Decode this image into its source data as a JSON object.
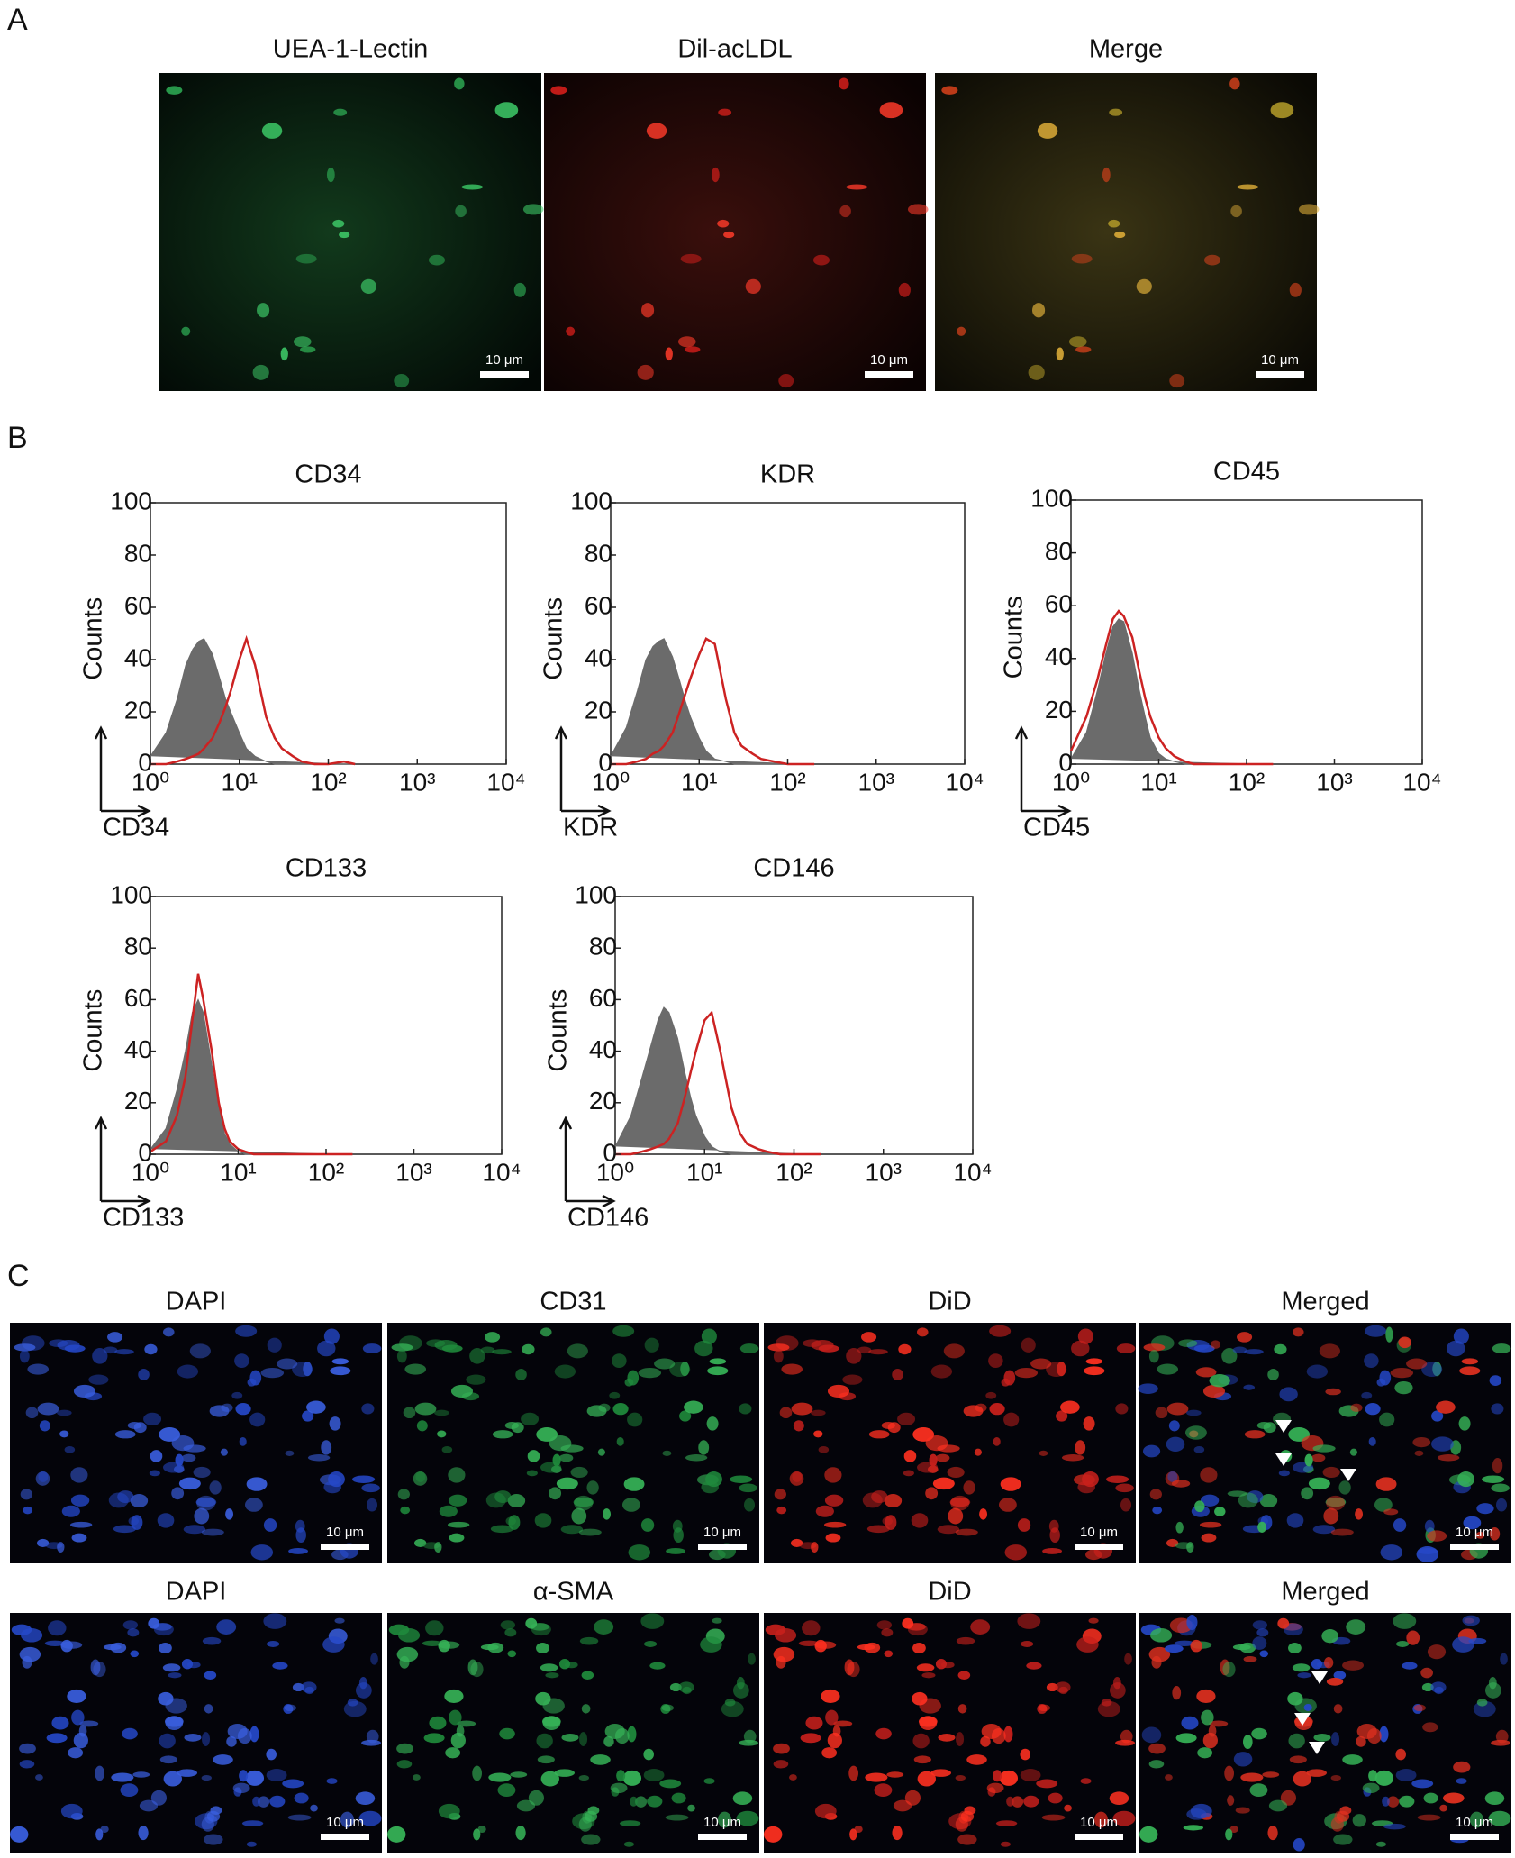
{
  "panel_labels": [
    "A",
    "B",
    "C"
  ],
  "panel_a": {
    "titles": [
      "UEA-1-Lectin",
      "Dil-acLDL",
      "Merge"
    ],
    "scale_bar": "10 μm"
  },
  "panel_c": {
    "rows": [
      [
        "DAPI",
        "CD31",
        "DiD",
        "Merged"
      ],
      [
        "DAPI",
        "α-SMA",
        "DiD",
        "Merged"
      ]
    ],
    "scale_bar": "10 μm"
  },
  "chart_data": [
    {
      "type": "line",
      "title": "CD34",
      "x_label": "CD34",
      "y_label": "Counts",
      "log_x": true,
      "x": [
        1,
        1.5,
        2,
        2.5,
        3,
        3.5,
        4,
        5,
        6,
        7,
        8,
        10,
        12,
        15,
        20,
        25,
        30,
        40,
        50,
        70,
        100,
        150,
        200
      ],
      "series": [
        {
          "color": "#6b6b6b",
          "fill": true,
          "values": [
            3,
            12,
            25,
            38,
            44,
            47,
            48,
            42,
            33,
            25,
            20,
            12,
            6,
            3,
            1,
            0,
            0,
            0,
            0,
            0,
            0,
            0,
            0
          ]
        },
        {
          "color": "#cc2222",
          "fill": false,
          "values": [
            0,
            0,
            1,
            2,
            3,
            4,
            6,
            10,
            16,
            22,
            28,
            40,
            48,
            38,
            18,
            10,
            6,
            3,
            1,
            0,
            0,
            1,
            0
          ]
        }
      ],
      "xlim": [
        1,
        10000
      ],
      "ylim": [
        0,
        100
      ],
      "xticks": [
        {
          "value": 1,
          "label": "10⁰"
        },
        {
          "value": 10,
          "label": "10¹"
        },
        {
          "value": 100,
          "label": "10²"
        },
        {
          "value": 1000,
          "label": "10³"
        },
        {
          "value": 10000,
          "label": "10⁴"
        }
      ],
      "yticks": [
        0,
        20,
        40,
        60,
        80,
        100
      ]
    },
    {
      "type": "line",
      "title": "KDR",
      "x_label": "KDR",
      "y_label": "Counts",
      "log_x": true,
      "x": [
        1,
        1.5,
        2,
        2.5,
        3,
        3.5,
        4,
        5,
        6,
        7,
        8,
        10,
        12,
        15,
        20,
        25,
        30,
        40,
        50,
        70,
        100,
        150,
        200
      ],
      "series": [
        {
          "color": "#6b6b6b",
          "fill": true,
          "values": [
            3,
            14,
            28,
            40,
            45,
            47,
            48,
            41,
            32,
            24,
            18,
            10,
            5,
            2,
            1,
            0,
            0,
            0,
            0,
            0,
            0,
            0,
            0
          ]
        },
        {
          "color": "#cc2222",
          "fill": false,
          "values": [
            0,
            0,
            1,
            2,
            4,
            5,
            7,
            12,
            20,
            27,
            33,
            42,
            48,
            46,
            25,
            12,
            7,
            4,
            2,
            1,
            0,
            0,
            0
          ]
        }
      ],
      "xlim": [
        1,
        10000
      ],
      "ylim": [
        0,
        100
      ],
      "xticks": [
        {
          "value": 1,
          "label": "10⁰"
        },
        {
          "value": 10,
          "label": "10¹"
        },
        {
          "value": 100,
          "label": "10²"
        },
        {
          "value": 1000,
          "label": "10³"
        },
        {
          "value": 10000,
          "label": "10⁴"
        }
      ],
      "yticks": [
        0,
        20,
        40,
        60,
        80,
        100
      ]
    },
    {
      "type": "line",
      "title": "CD45",
      "x_label": "CD45",
      "y_label": "Counts",
      "log_x": true,
      "x": [
        1,
        1.5,
        2,
        2.5,
        3,
        3.5,
        4,
        5,
        6,
        7,
        8,
        10,
        12,
        15,
        20,
        25,
        30,
        40,
        50,
        70,
        100,
        150,
        200
      ],
      "series": [
        {
          "color": "#6b6b6b",
          "fill": true,
          "values": [
            2,
            12,
            28,
            42,
            52,
            55,
            54,
            42,
            28,
            18,
            10,
            4,
            2,
            1,
            0,
            0,
            0,
            0,
            0,
            0,
            0,
            0,
            0
          ]
        },
        {
          "color": "#cc2222",
          "fill": false,
          "values": [
            5,
            18,
            32,
            45,
            55,
            58,
            56,
            48,
            35,
            25,
            18,
            10,
            6,
            3,
            1,
            0,
            0,
            0,
            0,
            0,
            0,
            0,
            0
          ]
        }
      ],
      "xlim": [
        1,
        10000
      ],
      "ylim": [
        0,
        100
      ],
      "xticks": [
        {
          "value": 1,
          "label": "10⁰"
        },
        {
          "value": 10,
          "label": "10¹"
        },
        {
          "value": 100,
          "label": "10²"
        },
        {
          "value": 1000,
          "label": "10³"
        },
        {
          "value": 10000,
          "label": "10⁴"
        }
      ],
      "yticks": [
        0,
        20,
        40,
        60,
        80,
        100
      ]
    },
    {
      "type": "line",
      "title": "CD133",
      "x_label": "CD133",
      "y_label": "Counts",
      "log_x": true,
      "x": [
        1,
        1.5,
        2,
        2.5,
        3,
        3.5,
        4,
        5,
        6,
        7,
        8,
        10,
        12,
        15,
        20,
        25,
        30,
        40,
        50,
        70,
        100,
        150,
        200
      ],
      "series": [
        {
          "color": "#6b6b6b",
          "fill": true,
          "values": [
            2,
            10,
            25,
            40,
            55,
            60,
            55,
            35,
            18,
            8,
            4,
            1,
            0,
            0,
            0,
            0,
            0,
            0,
            0,
            0,
            0,
            0,
            0
          ]
        },
        {
          "color": "#cc2222",
          "fill": false,
          "values": [
            1,
            5,
            15,
            30,
            52,
            70,
            60,
            40,
            20,
            10,
            5,
            2,
            1,
            0,
            0,
            0,
            0,
            0,
            0,
            0,
            0,
            0,
            0
          ]
        }
      ],
      "xlim": [
        1,
        10000
      ],
      "ylim": [
        0,
        100
      ],
      "xticks": [
        {
          "value": 1,
          "label": "10⁰"
        },
        {
          "value": 10,
          "label": "10¹"
        },
        {
          "value": 100,
          "label": "10²"
        },
        {
          "value": 1000,
          "label": "10³"
        },
        {
          "value": 10000,
          "label": "10⁴"
        }
      ],
      "yticks": [
        0,
        20,
        40,
        60,
        80,
        100
      ]
    },
    {
      "type": "line",
      "title": "CD146",
      "x_label": "CD146",
      "y_label": "Counts",
      "log_x": true,
      "x": [
        1,
        1.5,
        2,
        2.5,
        3,
        3.5,
        4,
        5,
        6,
        7,
        8,
        10,
        12,
        15,
        20,
        25,
        30,
        40,
        50,
        70,
        100,
        150,
        200
      ],
      "series": [
        {
          "color": "#6b6b6b",
          "fill": true,
          "values": [
            3,
            15,
            30,
            42,
            52,
            57,
            55,
            45,
            32,
            22,
            15,
            7,
            3,
            1,
            0,
            0,
            0,
            0,
            0,
            0,
            0,
            0,
            0
          ]
        },
        {
          "color": "#cc2222",
          "fill": false,
          "values": [
            0,
            0,
            1,
            2,
            3,
            4,
            6,
            12,
            22,
            32,
            40,
            52,
            55,
            40,
            18,
            8,
            4,
            2,
            1,
            0,
            0,
            0,
            0
          ]
        }
      ],
      "xlim": [
        1,
        10000
      ],
      "ylim": [
        0,
        100
      ],
      "xticks": [
        {
          "value": 1,
          "label": "10⁰"
        },
        {
          "value": 10,
          "label": "10¹"
        },
        {
          "value": 100,
          "label": "10²"
        },
        {
          "value": 1000,
          "label": "10³"
        },
        {
          "value": 10000,
          "label": "10⁴"
        }
      ],
      "yticks": [
        0,
        20,
        40,
        60,
        80,
        100
      ]
    }
  ]
}
